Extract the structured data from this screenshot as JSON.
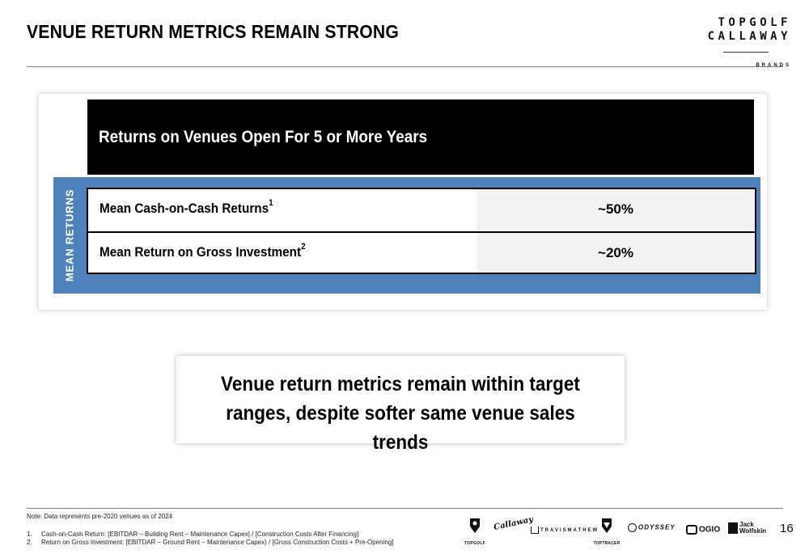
{
  "header": {
    "title": "VENUE RETURN METRICS REMAIN STRONG",
    "logo_line1": "TOPGOLF",
    "logo_line2": "CALLAWAY",
    "logo_line3": "BRANDS"
  },
  "panel": {
    "heading": "Returns on Venues Open For 5 or More Years",
    "side_label": "MEAN RETURNS",
    "rows": [
      {
        "label": "Mean Cash-on-Cash Returns",
        "sup": "1",
        "value": "~50%"
      },
      {
        "label": "Mean Return on Gross Investment",
        "sup": "2",
        "value": "~20%"
      }
    ]
  },
  "callout": {
    "line1": "Venue return metrics remain within target",
    "line2": "ranges, despite softer same venue sales trends"
  },
  "footer": {
    "note": "Note: Data represents pre-2020 venues as of 2024",
    "footnotes": [
      {
        "num": "1.",
        "text": "Cash-on-Cash Return: [EBITDAR – Building Rent – Maintenance Capex] / [Construction Costs After Financing]"
      },
      {
        "num": "2.",
        "text": "Return on Gross Investment: [EBITDAR – Ground Rent – Maintenance Capex) / [Gross Construction Costs + Pre-Opening]"
      }
    ],
    "brands": [
      "TOPGOLF",
      "Callaway",
      "TRAVISMATHEW",
      "TOPTRACER",
      "ODYSSEY",
      "OGIO",
      "Jack Wolfskin"
    ],
    "page_number": "16"
  },
  "colors": {
    "band_blue": "#4f81bd",
    "header_black": "#000000",
    "value_cell": "#f2f2f2"
  }
}
